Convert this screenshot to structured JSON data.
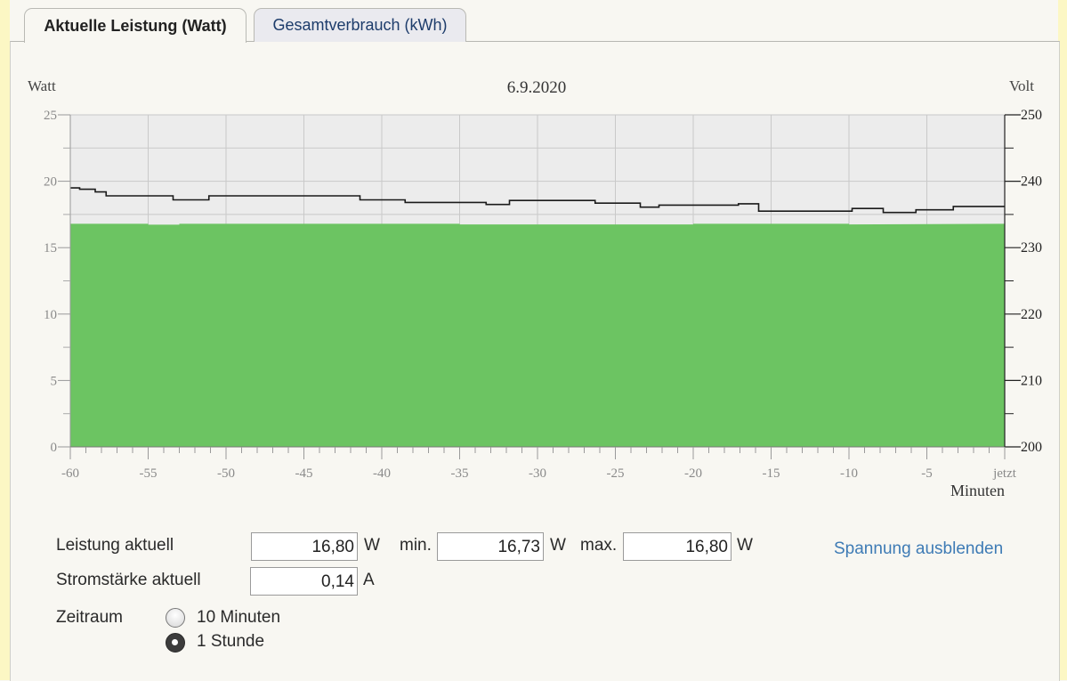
{
  "tabs": [
    {
      "label": "Aktuelle Leistung (Watt)",
      "active": true
    },
    {
      "label": "Gesamtverbrauch (kWh)",
      "active": false
    }
  ],
  "chart_data": {
    "type": "area",
    "title": "6.9.2020",
    "ylabel_left": "Watt",
    "ylabel_right": "Volt",
    "xlabel": "Minuten",
    "ylim_left": [
      0,
      25
    ],
    "ylim_right": [
      200,
      250
    ],
    "left_ticks": [
      "0",
      "5",
      "10",
      "15",
      "20",
      "25"
    ],
    "right_ticks": [
      "200",
      "210",
      "220",
      "230",
      "240",
      "250"
    ],
    "x_ticks": [
      "-60",
      "-55",
      "-50",
      "-45",
      "-40",
      "-35",
      "-30",
      "-25",
      "-20",
      "-15",
      "-10",
      "-5",
      "jetzt"
    ],
    "grid": true,
    "colors": {
      "power_fill": "#6cc462",
      "voltage_line": "#1a1a1a",
      "plot_bg": "#ececec"
    },
    "series": [
      {
        "type": "area",
        "axis": "left",
        "x": [
          -60,
          -55,
          -55,
          -53,
          -53,
          -40,
          -40,
          -35,
          -35,
          -20,
          -20,
          -10,
          -10,
          0
        ],
        "values": [
          16.8,
          16.8,
          16.73,
          16.73,
          16.8,
          16.8,
          16.8,
          16.8,
          16.75,
          16.75,
          16.8,
          16.8,
          16.75,
          16.8
        ]
      },
      {
        "type": "line",
        "axis": "right",
        "x": [
          -60,
          -59.4,
          -59.4,
          -58.4,
          -58.4,
          -57.7,
          -57.7,
          -53.4,
          -53.4,
          -51.1,
          -51.1,
          -41.4,
          -41.4,
          -38.5,
          -38.5,
          -33.3,
          -33.3,
          -31.8,
          -31.8,
          -26.3,
          -26.3,
          -23.4,
          -23.4,
          -22.2,
          -22.2,
          -17.1,
          -17.1,
          -15.8,
          -15.8,
          -9.8,
          -9.8,
          -7.8,
          -7.8,
          -5.7,
          -5.7,
          -3.3,
          -3.3,
          0
        ],
        "values": [
          239.0,
          239.0,
          238.8,
          238.8,
          238.4,
          238.4,
          237.8,
          237.8,
          237.2,
          237.2,
          237.8,
          237.8,
          237.2,
          237.2,
          236.8,
          236.8,
          236.5,
          236.5,
          237.1,
          237.1,
          236.7,
          236.7,
          236.1,
          236.1,
          236.4,
          236.4,
          236.6,
          236.6,
          235.5,
          235.5,
          235.9,
          235.9,
          235.3,
          235.3,
          235.7,
          235.7,
          236.2,
          236.2
        ]
      }
    ]
  },
  "readouts": {
    "leistung_label": "Leistung aktuell",
    "leistung_value": "16,80",
    "leistung_unit": "W",
    "min_label": "min.",
    "min_value": "16,73",
    "min_unit": "W",
    "max_label": "max.",
    "max_value": "16,80",
    "max_unit": "W",
    "strom_label": "Stromstärke aktuell",
    "strom_value": "0,14",
    "strom_unit": "A",
    "zeitraum_label": "Zeitraum",
    "toggle_voltage": "Spannung ausblenden"
  },
  "zeitraum_options": [
    {
      "label": "10 Minuten",
      "selected": false
    },
    {
      "label": "1 Stunde",
      "selected": true
    }
  ]
}
